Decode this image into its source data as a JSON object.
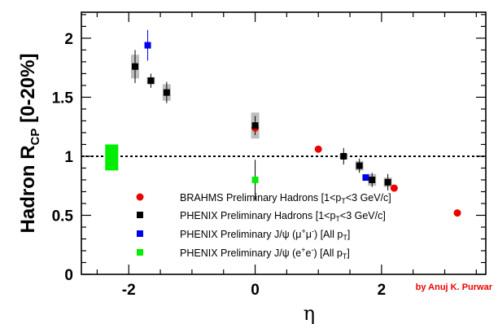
{
  "chart_data": {
    "type": "scatter",
    "xlabel": "η",
    "ylabel": "Hadron R",
    "ylabel_sub": "CP",
    "ylabel_tail": " [0-20%]",
    "xlim": [
      -2.75,
      3.65
    ],
    "ylim": [
      0,
      2.22
    ],
    "xticks": [
      -2,
      0,
      2
    ],
    "yticks": [
      0,
      0.5,
      1,
      1.5,
      2
    ],
    "ytick_labels": [
      "0",
      "0.5",
      "1",
      "1.5",
      "2"
    ],
    "reference_line": 1,
    "grid": false,
    "legend_position": "lower-center",
    "normalization_box": {
      "x": -2.27,
      "y_low": 0.88,
      "y_high": 1.1,
      "color": "#00ee00"
    },
    "credit": "by Anuj K. Purwar",
    "credit_color": "#ee0000",
    "series": [
      {
        "name": "BRAHMS Preliminary Hadrons",
        "label_main": "BRAHMS Preliminary Hadrons [1<p",
        "label_sub": "T",
        "label_tail": "<3 GeV/c]",
        "marker": "circle",
        "color": "#ee0000",
        "points": [
          {
            "x": 0.0,
            "y": 1.24
          },
          {
            "x": 1.0,
            "y": 1.06
          },
          {
            "x": 2.2,
            "y": 0.73
          },
          {
            "x": 3.2,
            "y": 0.52
          }
        ]
      },
      {
        "name": "PHENIX Preliminary Hadrons",
        "label_main": "PHENIX Preliminary Hadrons [1<p",
        "label_sub": "T",
        "label_tail": "<3 GeV/c]",
        "marker": "square",
        "color": "#000000",
        "points": [
          {
            "x": -1.9,
            "y": 1.76,
            "err": 0.14,
            "sys": 0.1
          },
          {
            "x": -1.65,
            "y": 1.64,
            "err": 0.06,
            "sys": 0.03
          },
          {
            "x": -1.4,
            "y": 1.54,
            "err": 0.09,
            "sys": 0.07
          },
          {
            "x": 0.0,
            "y": 1.26,
            "err": 0.08,
            "sys": 0.11
          },
          {
            "x": 1.4,
            "y": 1.0,
            "err": 0.07,
            "sys": 0.02
          },
          {
            "x": 1.65,
            "y": 0.92,
            "err": 0.06,
            "sys": 0.04
          },
          {
            "x": 1.85,
            "y": 0.8,
            "err": 0.06,
            "sys": 0.05
          },
          {
            "x": 2.1,
            "y": 0.78,
            "err": 0.07,
            "sys": 0.04
          }
        ]
      },
      {
        "name": "PHENIX Preliminary J/ψ (μ+μ-)",
        "label_main": "PHENIX Preliminary J/ψ (μ",
        "label_sup1": "+",
        "label_mid": "μ",
        "label_sup2": "-",
        "label_tail": ") [All p",
        "label_sub": "T",
        "label_end": "]",
        "marker": "square",
        "color": "#0000ee",
        "points": [
          {
            "x": -1.7,
            "y": 1.94,
            "err": 0.13
          },
          {
            "x": 1.75,
            "y": 0.82,
            "err": 0.0
          }
        ]
      },
      {
        "name": "PHENIX Preliminary J/ψ (e+e-)",
        "label_main": "PHENIX Preliminary J/ψ (e",
        "label_sup1": "+",
        "label_mid": "e",
        "label_sup2": "-",
        "label_tail": ") [All p",
        "label_sub": "T",
        "label_end": "]",
        "marker": "square",
        "color": "#00ee00",
        "points": [
          {
            "x": 0.0,
            "y": 0.8,
            "err": 0.17
          }
        ]
      }
    ]
  }
}
